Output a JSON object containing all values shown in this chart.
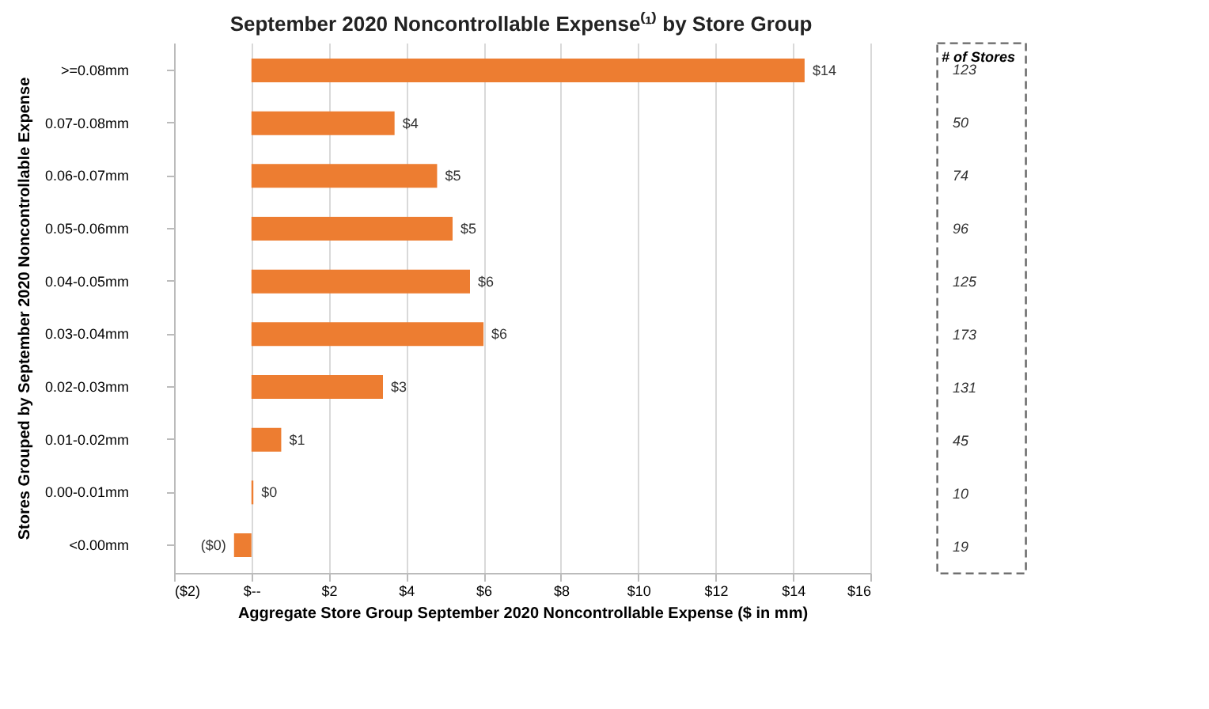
{
  "chart_data": {
    "type": "bar",
    "orientation": "horizontal",
    "title": "September 2020 Noncontrollable Expense⁽¹⁾ by Store Group",
    "xlabel": "Aggregate Store Group September 2020 Noncontrollable Expense ($ in mm)",
    "ylabel": "Stores Grouped by September 2020 Noncontrollable Expense",
    "categories": [
      ">=0.08mm",
      "0.07-0.08mm",
      "0.06-0.07mm",
      "0.05-0.06mm",
      "0.04-0.05mm",
      "0.03-0.04mm",
      "0.02-0.03mm",
      "0.01-0.02mm",
      "0.00-0.01mm",
      "<0.00mm"
    ],
    "values": [
      14.3,
      3.7,
      4.8,
      5.2,
      5.65,
      6.0,
      3.4,
      0.77,
      0.05,
      -0.45
    ],
    "value_labels": [
      "$14",
      "$4",
      "$5",
      "$5",
      "$6",
      "$6",
      "$3",
      "$1",
      "$0",
      "($0)"
    ],
    "color": "#ed7d31",
    "xlim": [
      -2,
      16
    ],
    "xticks": [
      {
        "value": -2,
        "label": "($2)"
      },
      {
        "value": 0,
        "label": "$--"
      },
      {
        "value": 2,
        "label": "$2"
      },
      {
        "value": 4,
        "label": "$4"
      },
      {
        "value": 6,
        "label": "$6"
      },
      {
        "value": 8,
        "label": "$8"
      },
      {
        "value": 10,
        "label": "$10"
      },
      {
        "value": 12,
        "label": "$12"
      },
      {
        "value": 14,
        "label": "$14"
      },
      {
        "value": 16,
        "label": "$16"
      }
    ],
    "grid": "x",
    "annotations": [
      "# of Stores",
      "123",
      "50",
      "74",
      "96",
      "125",
      "173",
      "131",
      "45",
      "10",
      "19"
    ]
  }
}
